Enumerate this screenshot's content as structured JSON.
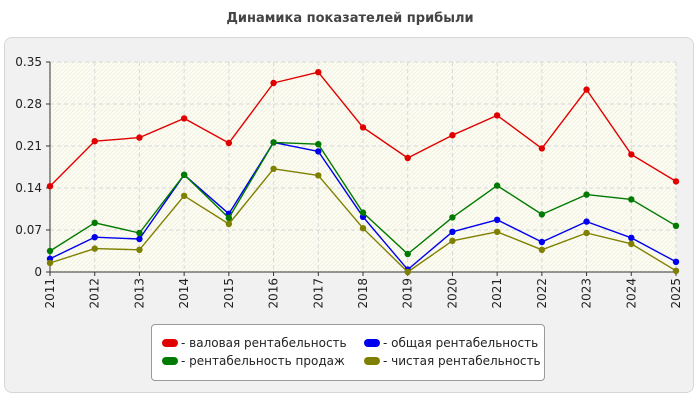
{
  "chart_data": {
    "type": "line",
    "title": "Динамика показателей прибыли",
    "categories": [
      "2011",
      "2012",
      "2013",
      "2014",
      "2015",
      "2016",
      "2017",
      "2018",
      "2019",
      "2020",
      "2021",
      "2022",
      "2023",
      "2024",
      "2025"
    ],
    "y_ticks": [
      "0",
      "0.07",
      "0.14",
      "0.21",
      "0.28",
      "0.35"
    ],
    "ylim": [
      0,
      0.35
    ],
    "grid": true,
    "legend_position": "bottom",
    "series": [
      {
        "name": "- валовая рентабельность",
        "color": "#e00000",
        "values": [
          0.143,
          0.218,
          0.224,
          0.256,
          0.215,
          0.315,
          0.333,
          0.241,
          0.19,
          0.228,
          0.261,
          0.206,
          0.304,
          0.196,
          0.151
        ]
      },
      {
        "name": "- общая рентабельность",
        "color": "#0000ee",
        "values": [
          0.022,
          0.058,
          0.055,
          0.162,
          0.097,
          0.216,
          0.201,
          0.092,
          0.004,
          0.067,
          0.087,
          0.05,
          0.084,
          0.057,
          0.017
        ]
      },
      {
        "name": "- рентабельность продаж",
        "color": "#007a00",
        "values": [
          0.035,
          0.082,
          0.065,
          0.162,
          0.09,
          0.216,
          0.213,
          0.099,
          0.03,
          0.091,
          0.144,
          0.096,
          0.129,
          0.121,
          0.077
        ]
      },
      {
        "name": "- чистая рентабельность",
        "color": "#808000",
        "values": [
          0.015,
          0.039,
          0.037,
          0.127,
          0.08,
          0.172,
          0.161,
          0.073,
          0.0,
          0.052,
          0.067,
          0.037,
          0.065,
          0.047,
          0.002
        ]
      }
    ]
  }
}
